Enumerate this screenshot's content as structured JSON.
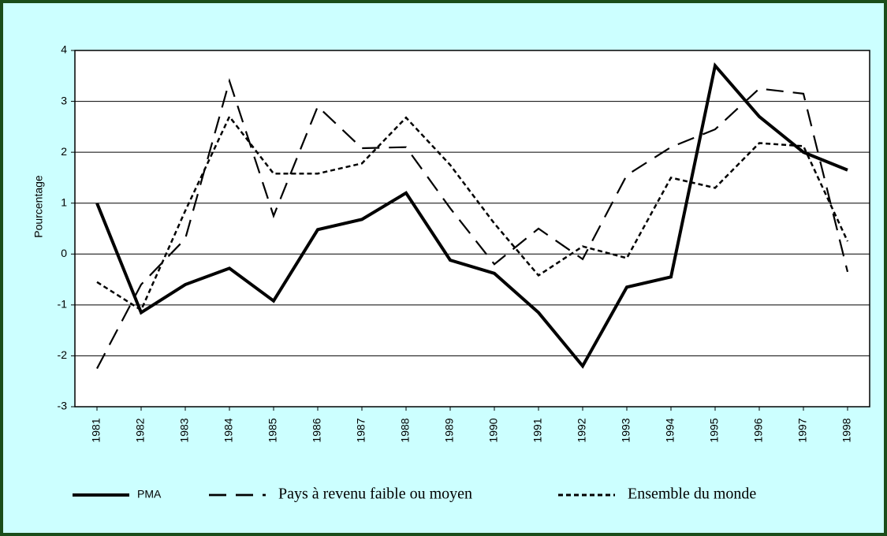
{
  "chart_data": {
    "type": "line",
    "y_label": "Pourcentage",
    "categories": [
      "1981",
      "1982",
      "1983",
      "1984",
      "1985",
      "1986",
      "1987",
      "1988",
      "1989",
      "1990",
      "1991",
      "1992",
      "1993",
      "1994",
      "1995",
      "1996",
      "1997",
      "1998"
    ],
    "series": [
      {
        "name": "PMA",
        "color": "#000000",
        "values": [
          1.0,
          -1.15,
          -0.6,
          -0.28,
          -0.92,
          0.48,
          0.68,
          1.2,
          -0.12,
          -0.38,
          -1.15,
          -2.2,
          -0.65,
          -0.45,
          3.7,
          2.7,
          2.0,
          1.65
        ]
      },
      {
        "name": "Pays à revenu faible ou moyen",
        "color": "#000000",
        "values": [
          -2.25,
          -0.6,
          0.3,
          3.4,
          0.75,
          2.9,
          2.08,
          2.1,
          0.9,
          -0.2,
          0.5,
          -0.1,
          1.55,
          2.1,
          2.45,
          3.25,
          3.15,
          -0.35
        ]
      },
      {
        "name": "Ensemble du monde",
        "color": "#000000",
        "values": [
          -0.55,
          -1.1,
          0.85,
          2.7,
          1.58,
          1.58,
          1.78,
          2.68,
          1.75,
          0.6,
          -0.42,
          0.15,
          -0.08,
          1.5,
          1.3,
          2.18,
          2.12,
          0.25
        ]
      }
    ],
    "ylim": [
      -3,
      4
    ],
    "yticks": [
      -3,
      -2,
      -1,
      0,
      1,
      2,
      3,
      4
    ],
    "grid": true
  }
}
